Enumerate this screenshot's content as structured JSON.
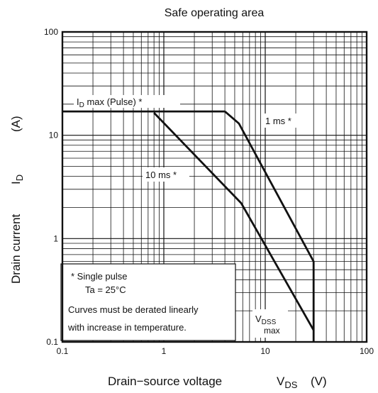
{
  "chart_data": {
    "type": "line",
    "title": "Safe operating area",
    "xlabel": "Drain−source voltage",
    "xlabel_symbol": "V",
    "xlabel_sub": "DS",
    "xlabel_unit": "(V)",
    "ylabel": "Drain current",
    "ylabel_symbol": "I",
    "ylabel_sub": "D",
    "ylabel_unit": "(A)",
    "x_scale": "log",
    "y_scale": "log",
    "xlim": [
      0.1,
      100
    ],
    "ylim": [
      0.1,
      100
    ],
    "x_ticks": [
      {
        "value": 0.1,
        "label": "0.1"
      },
      {
        "value": 1,
        "label": "1"
      },
      {
        "value": 10,
        "label": "10"
      },
      {
        "value": 100,
        "label": "100"
      }
    ],
    "y_ticks": [
      {
        "value": 0.1,
        "label": "0.1"
      },
      {
        "value": 1,
        "label": "1"
      },
      {
        "value": 10,
        "label": "10"
      },
      {
        "value": 100,
        "label": "100"
      }
    ],
    "grid": true,
    "series": [
      {
        "name": "ID max (Pulse) *",
        "points": [
          [
            0.1,
            17
          ],
          [
            4.0,
            17
          ]
        ]
      },
      {
        "name": "1 ms *",
        "points": [
          [
            4.0,
            17
          ],
          [
            5.5,
            13
          ],
          [
            30,
            0.6
          ],
          [
            30,
            0.1
          ]
        ]
      },
      {
        "name": "10 ms *",
        "points": [
          [
            0.8,
            16.5
          ],
          [
            5.8,
            2.2
          ],
          [
            30,
            0.13
          ]
        ]
      }
    ],
    "annotations": {
      "id_max": {
        "main": "I",
        "sub": "D",
        "rest": " max (Pulse) *"
      },
      "one_ms": "1 ms *",
      "ten_ms": "10 ms *",
      "vdss": {
        "main": "V",
        "sub": "DSS",
        "line2": "max"
      }
    },
    "note_box": {
      "line1": "*  Single pulse",
      "line2": "Ta = 25°C",
      "line3": "Curves must be derated linearly",
      "line4": "with increase in temperature."
    }
  },
  "colors": {
    "line": "#111111",
    "grid": "#111111",
    "background": "#ffffff"
  }
}
